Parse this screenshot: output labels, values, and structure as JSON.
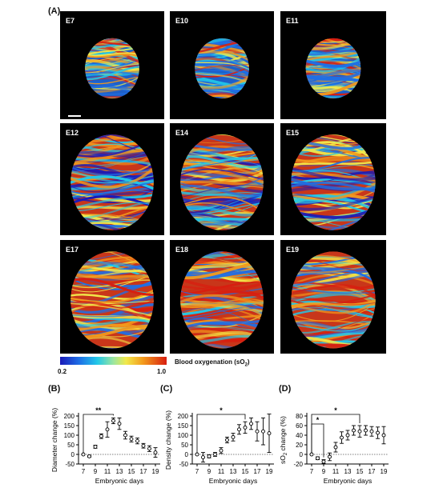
{
  "panels": {
    "a": "(A)",
    "b": "(B)",
    "c": "(C)",
    "d": "(D)"
  },
  "tiles": [
    "E7",
    "E10",
    "E11",
    "E12",
    "E14",
    "E15",
    "E17",
    "E18",
    "E19"
  ],
  "colorbar": {
    "label_main": "Blood oxygenation (sO",
    "label_sub": "2",
    "label_end": ")",
    "min": "0.2",
    "max": "1.0"
  },
  "chart_data": [
    {
      "type": "scatter",
      "ylabel": "Diameter change (%)",
      "xlabel": "Embryonic days",
      "ylim": [
        -50,
        200
      ],
      "yticks": [
        -50,
        0,
        50,
        100,
        150,
        200
      ],
      "xticks": [
        7,
        9,
        11,
        13,
        15,
        17,
        19
      ],
      "x": [
        7,
        8,
        9,
        10,
        11,
        12,
        13,
        14,
        15,
        16,
        17,
        18,
        19
      ],
      "y": [
        0,
        -10,
        40,
        95,
        130,
        175,
        160,
        100,
        80,
        70,
        45,
        30,
        10
      ],
      "err": [
        0,
        5,
        8,
        12,
        40,
        15,
        30,
        20,
        15,
        15,
        12,
        15,
        25
      ],
      "significance": [
        {
          "from": 7,
          "to": 12,
          "label": "**"
        }
      ]
    },
    {
      "type": "scatter",
      "ylabel": "Density change (%)",
      "xlabel": "Embryonic days",
      "ylim": [
        -50,
        200
      ],
      "yticks": [
        -50,
        0,
        50,
        100,
        150,
        200
      ],
      "xticks": [
        7,
        9,
        11,
        13,
        15,
        17,
        19
      ],
      "x": [
        7,
        8,
        9,
        10,
        11,
        12,
        13,
        14,
        15,
        16,
        17,
        18,
        19
      ],
      "y": [
        0,
        -15,
        -10,
        0,
        20,
        75,
        90,
        130,
        140,
        160,
        120,
        120,
        110
      ],
      "err": [
        0,
        25,
        8,
        10,
        15,
        15,
        20,
        25,
        30,
        30,
        50,
        70,
        100
      ],
      "significance": [
        {
          "from": 7,
          "to": 15,
          "label": "*"
        }
      ]
    },
    {
      "type": "scatter",
      "ylabel_main": "sO",
      "ylabel_sub": "2",
      "ylabel_end": " change (%)",
      "xlabel": "Embryonic days",
      "ylim": [
        -20,
        80
      ],
      "yticks": [
        -20,
        0,
        20,
        40,
        60,
        80
      ],
      "xticks": [
        7,
        9,
        11,
        13,
        15,
        17,
        19
      ],
      "x": [
        7,
        8,
        9,
        10,
        11,
        12,
        13,
        14,
        15,
        16,
        17,
        18,
        19
      ],
      "y": [
        0,
        -8,
        -15,
        -5,
        15,
        35,
        40,
        50,
        48,
        50,
        48,
        45,
        40
      ],
      "err": [
        0,
        3,
        4,
        8,
        10,
        12,
        10,
        10,
        12,
        10,
        10,
        12,
        18
      ],
      "significance": [
        {
          "from": 7,
          "to": 9,
          "label": "*"
        },
        {
          "from": 7,
          "to": 15,
          "label": "*"
        }
      ]
    }
  ]
}
